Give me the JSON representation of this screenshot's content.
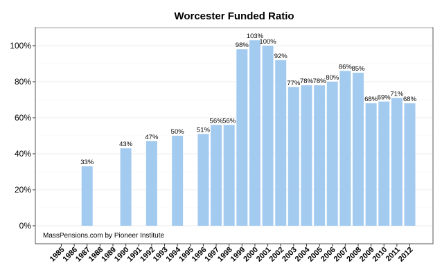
{
  "chart_data": {
    "type": "bar",
    "title": "Worcester Funded Ratio",
    "xlabel": "",
    "ylabel": "",
    "categories": [
      "1985",
      "1986",
      "1987",
      "1988",
      "1989",
      "1990",
      "1991",
      "1992",
      "1993",
      "1994",
      "1995",
      "1996",
      "1997",
      "1998",
      "1999",
      "2000",
      "2001",
      "2002",
      "2003",
      "2004",
      "2005",
      "2006",
      "2007",
      "2008",
      "2009",
      "2010",
      "2011",
      "2012"
    ],
    "values": [
      null,
      null,
      33,
      null,
      null,
      43,
      null,
      47,
      null,
      50,
      null,
      51,
      56,
      56,
      98,
      103,
      100,
      92,
      77,
      78,
      78,
      80,
      86,
      85,
      68,
      69,
      71,
      68
    ],
    "value_labels": [
      "",
      "",
      "33%",
      "",
      "",
      "43%",
      "",
      "47%",
      "",
      "50%",
      "",
      "51%",
      "56%",
      "56%",
      "98%",
      "103%",
      "100%",
      "92%",
      "77%",
      "78%",
      "78%",
      "80%",
      "86%",
      "85%",
      "68%",
      "69%",
      "71%",
      "68%"
    ],
    "ylim": [
      -10,
      110
    ],
    "yticks": [
      0,
      20,
      40,
      60,
      80,
      100
    ],
    "ytick_labels": [
      "0%",
      "20%",
      "40%",
      "60%",
      "80%",
      "100%"
    ],
    "grid": true,
    "legend": "none",
    "bar_color": "#a3cbf0",
    "annotation": "MassPensions.com by Pioneer Institute"
  }
}
